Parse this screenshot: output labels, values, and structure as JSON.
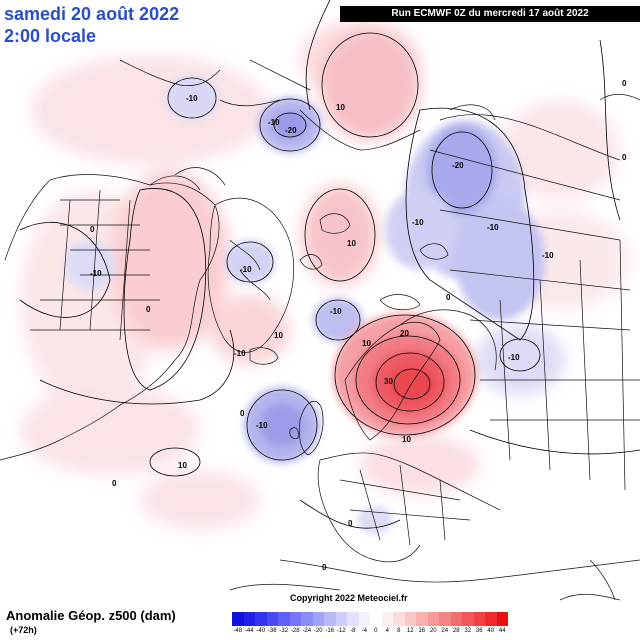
{
  "header": {
    "date_line": "samedi 20 août 2022",
    "time_line": "2:00 locale",
    "run_info": "Run ECMWF 0Z du mercredi 17 août 2022"
  },
  "footer": {
    "title": "Anomalie Géop. z500 (dam)",
    "subtitle": "(+72h)",
    "copyright": "Copyright 2022 Meteociel.fr"
  },
  "colorbar": {
    "ticks": [
      "-48",
      "-44",
      "-40",
      "-36",
      "-32",
      "-28",
      "-24",
      "-20",
      "-16",
      "-12",
      "-8",
      "-4",
      "0",
      "4",
      "8",
      "12",
      "16",
      "20",
      "24",
      "28",
      "32",
      "36",
      "40",
      "44"
    ],
    "colors": [
      "#1010e0",
      "#2020e8",
      "#3434f0",
      "#4a4af2",
      "#6060f4",
      "#7676f6",
      "#8c8cf8",
      "#a2a2fa",
      "#b8b8fb",
      "#ceceFC",
      "#e2e2fd",
      "#f3f3ff",
      "#ffffff",
      "#fdf0f0",
      "#fcdcdc",
      "#fbc6c6",
      "#f9b0b0",
      "#f79a9a",
      "#f58484",
      "#f36e6e",
      "#f15858",
      "#ef4242",
      "#ec2a2a",
      "#e81010"
    ]
  },
  "contour_labels": [
    {
      "text": "-10"
    },
    {
      "text": "-10"
    },
    {
      "text": "-20"
    },
    {
      "text": "10"
    },
    {
      "text": "-20"
    },
    {
      "text": "-10"
    },
    {
      "text": "-10"
    },
    {
      "text": "-10"
    },
    {
      "text": "10"
    },
    {
      "text": "-10"
    },
    {
      "text": "0"
    },
    {
      "text": "0"
    },
    {
      "text": "0"
    },
    {
      "text": "10"
    },
    {
      "text": "-10"
    },
    {
      "text": "-10"
    },
    {
      "text": "20"
    },
    {
      "text": "30"
    },
    {
      "text": "-10"
    },
    {
      "text": "-10"
    },
    {
      "text": "10"
    },
    {
      "text": "10"
    },
    {
      "text": "0"
    },
    {
      "text": "0"
    },
    {
      "text": "0"
    },
    {
      "text": "0"
    },
    {
      "text": "10"
    },
    {
      "text": "0"
    },
    {
      "text": "0"
    },
    {
      "text": "-10"
    }
  ]
}
